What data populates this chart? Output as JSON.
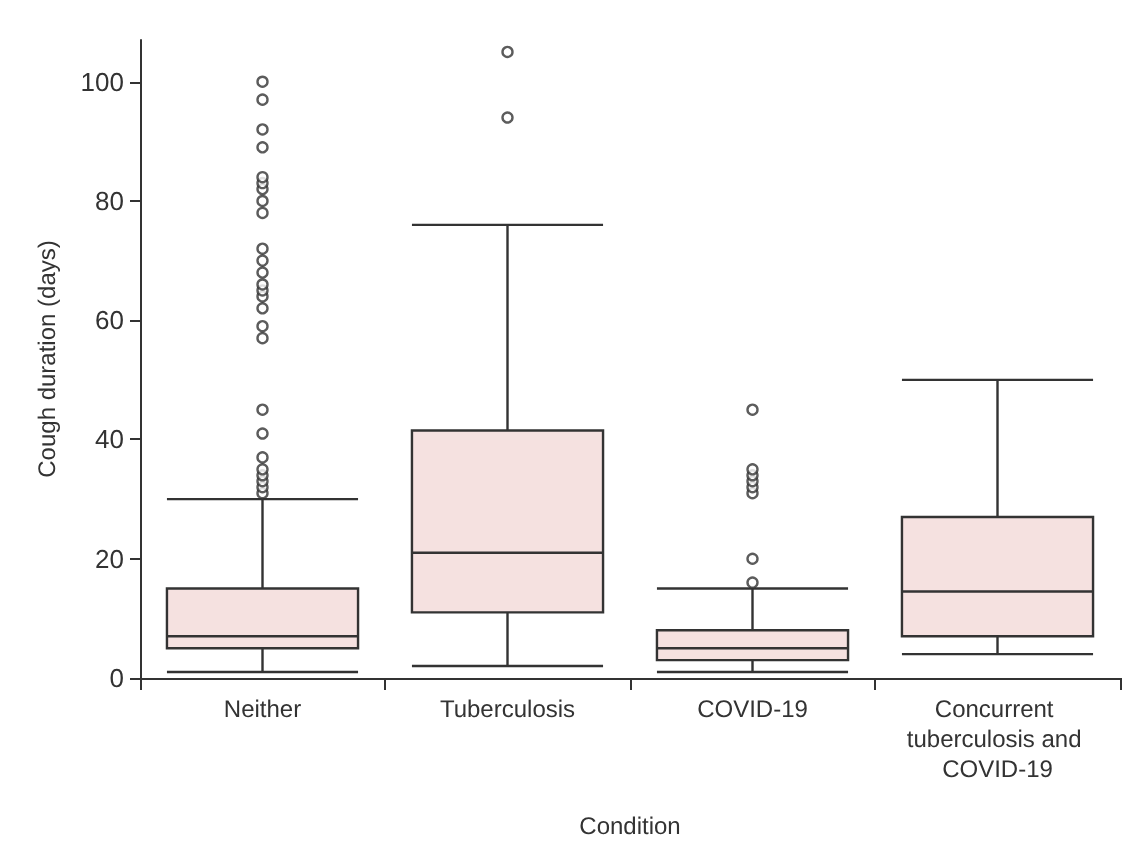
{
  "chart_data": {
    "type": "box",
    "xlabel": "Condition",
    "ylabel": "Cough duration (days)",
    "categories": [
      "Neither",
      "Tuberculosis",
      "COVID-19",
      "Concurrent tuberculosis and COVID-19"
    ],
    "color": "#f5e1e0",
    "boxes": [
      {
        "low": 1,
        "q1": 5,
        "median": 7,
        "q3": 15,
        "high": 30,
        "outliers": [
          31,
          32,
          33,
          34,
          35,
          37,
          41,
          45,
          57,
          59,
          62,
          64,
          65,
          66,
          68,
          70,
          72,
          78,
          80,
          82,
          83,
          84,
          89,
          92,
          97,
          100
        ]
      },
      {
        "low": 2,
        "q1": 11,
        "median": 21,
        "q3": 41.5,
        "high": 76,
        "outliers": [
          94,
          105
        ]
      },
      {
        "low": 1,
        "q1": 3,
        "median": 5,
        "q3": 8,
        "high": 15,
        "outliers": [
          16,
          20,
          31,
          32,
          33,
          34,
          35,
          45
        ]
      },
      {
        "low": 4,
        "q1": 7,
        "median": 14.5,
        "q3": 27,
        "high": 50
      }
    ],
    "ylim": [
      0,
      107
    ],
    "yticks": [
      0,
      20,
      40,
      60,
      80,
      100
    ],
    "grid": false
  }
}
